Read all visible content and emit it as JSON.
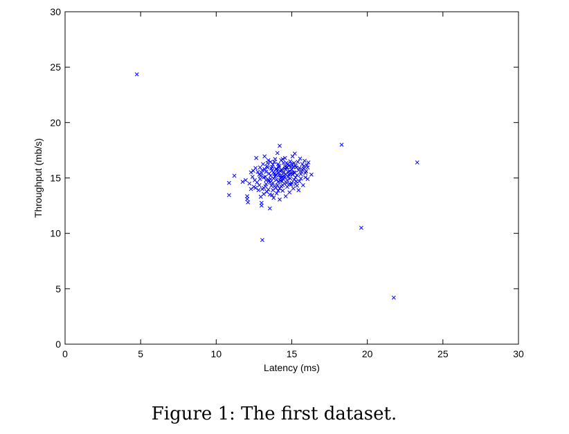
{
  "caption": "Figure 1: The first dataset.",
  "chart_data": {
    "type": "scatter",
    "title": "",
    "xlabel": "Latency (ms)",
    "ylabel": "Throughput (mb/s)",
    "xlim": [
      0,
      30
    ],
    "ylim": [
      0,
      30
    ],
    "xticks": [
      0,
      5,
      10,
      15,
      20,
      25,
      30
    ],
    "yticks": [
      0,
      5,
      10,
      15,
      20,
      25,
      30
    ],
    "marker": "x",
    "color": "#0000ff",
    "grid": false,
    "points": [
      [
        4.75,
        24.35
      ],
      [
        18.3,
        18.0
      ],
      [
        19.6,
        10.5
      ],
      [
        21.75,
        4.2
      ],
      [
        23.3,
        16.4
      ],
      [
        13.05,
        9.4
      ],
      [
        10.85,
        14.55
      ],
      [
        10.85,
        13.45
      ],
      [
        11.2,
        15.2
      ],
      [
        11.75,
        14.65
      ],
      [
        11.95,
        14.8
      ],
      [
        12.05,
        13.35
      ],
      [
        12.05,
        13.1
      ],
      [
        12.1,
        12.8
      ],
      [
        12.2,
        14.5
      ],
      [
        12.3,
        15.5
      ],
      [
        12.4,
        15.1
      ],
      [
        12.5,
        14.2
      ],
      [
        12.6,
        15.9
      ],
      [
        12.65,
        16.8
      ],
      [
        12.7,
        14.6
      ],
      [
        12.8,
        13.9
      ],
      [
        12.85,
        15.3
      ],
      [
        12.9,
        14.9
      ],
      [
        12.95,
        13.3
      ],
      [
        13.0,
        12.75
      ],
      [
        13.0,
        12.5
      ],
      [
        13.05,
        15.7
      ],
      [
        13.1,
        16.25
      ],
      [
        13.15,
        14.1
      ],
      [
        13.2,
        16.95
      ],
      [
        13.25,
        15.1
      ],
      [
        13.3,
        14.45
      ],
      [
        13.35,
        13.75
      ],
      [
        13.4,
        15.95
      ],
      [
        13.45,
        14.85
      ],
      [
        13.5,
        15.4
      ],
      [
        13.55,
        13.5
      ],
      [
        13.55,
        12.25
      ],
      [
        13.6,
        16.45
      ],
      [
        13.65,
        14.3
      ],
      [
        13.7,
        15.65
      ],
      [
        13.75,
        16.2
      ],
      [
        13.8,
        14.95
      ],
      [
        13.8,
        13.2
      ],
      [
        13.85,
        15.35
      ],
      [
        13.9,
        16.7
      ],
      [
        13.95,
        14.1
      ],
      [
        14.0,
        15.8
      ],
      [
        14.0,
        13.6
      ],
      [
        14.05,
        17.25
      ],
      [
        14.1,
        14.65
      ],
      [
        14.1,
        15.45
      ],
      [
        14.15,
        16.1
      ],
      [
        14.2,
        17.9
      ],
      [
        14.2,
        13.05
      ],
      [
        14.25,
        15.0
      ],
      [
        14.3,
        16.6
      ],
      [
        14.3,
        14.25
      ],
      [
        14.35,
        15.7
      ],
      [
        14.4,
        13.85
      ],
      [
        14.45,
        16.35
      ],
      [
        14.5,
        15.2
      ],
      [
        14.5,
        14.5
      ],
      [
        14.55,
        16.8
      ],
      [
        14.6,
        13.35
      ],
      [
        14.65,
        15.95
      ],
      [
        14.7,
        14.8
      ],
      [
        14.75,
        16.25
      ],
      [
        14.8,
        15.3
      ],
      [
        14.85,
        13.7
      ],
      [
        14.9,
        16.5
      ],
      [
        14.95,
        14.4
      ],
      [
        15.0,
        15.75
      ],
      [
        15.05,
        16.95
      ],
      [
        15.1,
        14.05
      ],
      [
        15.15,
        15.5
      ],
      [
        15.2,
        17.2
      ],
      [
        15.25,
        16.1
      ],
      [
        15.3,
        14.7
      ],
      [
        15.35,
        15.25
      ],
      [
        15.4,
        16.45
      ],
      [
        15.45,
        13.9
      ],
      [
        15.5,
        15.9
      ],
      [
        15.55,
        16.75
      ],
      [
        15.6,
        14.95
      ],
      [
        15.65,
        15.55
      ],
      [
        15.7,
        16.25
      ],
      [
        15.75,
        14.35
      ],
      [
        15.8,
        15.85
      ],
      [
        15.85,
        16.55
      ],
      [
        15.9,
        15.05
      ],
      [
        15.95,
        15.6
      ],
      [
        16.0,
        16.15
      ],
      [
        16.05,
        14.9
      ],
      [
        16.1,
        16.4
      ],
      [
        16.3,
        15.3
      ],
      [
        12.6,
        14.1
      ],
      [
        12.75,
        15.55
      ],
      [
        13.05,
        14.0
      ],
      [
        13.2,
        15.8
      ],
      [
        13.35,
        16.05
      ],
      [
        13.45,
        13.95
      ],
      [
        13.6,
        15.2
      ],
      [
        13.75,
        14.55
      ],
      [
        13.85,
        16.45
      ],
      [
        13.95,
        15.3
      ],
      [
        14.05,
        14.35
      ],
      [
        14.15,
        15.95
      ],
      [
        14.25,
        15.6
      ],
      [
        14.35,
        14.7
      ],
      [
        14.45,
        15.45
      ],
      [
        14.55,
        15.85
      ],
      [
        14.65,
        14.55
      ],
      [
        14.75,
        15.1
      ],
      [
        14.85,
        15.6
      ],
      [
        14.95,
        16.0
      ],
      [
        15.05,
        15.3
      ],
      [
        15.15,
        16.35
      ],
      [
        15.25,
        15.05
      ],
      [
        15.35,
        14.3
      ],
      [
        15.45,
        15.7
      ],
      [
        13.15,
        15.05
      ],
      [
        13.25,
        14.25
      ],
      [
        13.4,
        16.35
      ],
      [
        13.5,
        14.75
      ],
      [
        13.65,
        15.85
      ],
      [
        13.7,
        13.45
      ],
      [
        13.9,
        15.15
      ],
      [
        14.0,
        14.85
      ],
      [
        14.1,
        16.25
      ],
      [
        14.2,
        14.05
      ],
      [
        14.3,
        15.25
      ],
      [
        14.4,
        16.7
      ],
      [
        14.5,
        15.05
      ],
      [
        14.6,
        15.75
      ],
      [
        14.7,
        14.2
      ],
      [
        14.8,
        16.1
      ],
      [
        14.9,
        14.95
      ],
      [
        15.0,
        14.55
      ],
      [
        15.1,
        16.0
      ],
      [
        15.2,
        15.45
      ],
      [
        12.45,
        15.65
      ],
      [
        12.85,
        14.35
      ],
      [
        13.0,
        15.45
      ],
      [
        13.3,
        15.55
      ],
      [
        13.55,
        14.6
      ],
      [
        13.8,
        15.5
      ],
      [
        14.05,
        15.65
      ],
      [
        14.35,
        15.05
      ],
      [
        14.6,
        15.35
      ],
      [
        14.85,
        14.45
      ],
      [
        15.05,
        15.5
      ],
      [
        15.3,
        15.95
      ],
      [
        15.6,
        15.35
      ],
      [
        15.8,
        16.05
      ],
      [
        12.3,
        14.0
      ],
      [
        12.55,
        14.8
      ],
      [
        12.9,
        15.95
      ],
      [
        13.15,
        13.55
      ],
      [
        13.45,
        16.6
      ],
      [
        13.75,
        13.9
      ],
      [
        14.1,
        13.85
      ],
      [
        14.4,
        14.35
      ],
      [
        14.7,
        15.95
      ],
      [
        15.0,
        16.25
      ],
      [
        15.25,
        14.45
      ],
      [
        15.5,
        14.7
      ],
      [
        15.7,
        15.75
      ],
      [
        15.9,
        15.45
      ],
      [
        16.05,
        15.95
      ],
      [
        13.6,
        14.9
      ],
      [
        14.15,
        15.25
      ],
      [
        14.55,
        16.05
      ],
      [
        13.95,
        15.8
      ],
      [
        14.25,
        14.75
      ],
      [
        14.45,
        14.9
      ],
      [
        14.75,
        15.55
      ],
      [
        13.3,
        14.8
      ],
      [
        13.85,
        14.25
      ],
      [
        14.65,
        16.35
      ],
      [
        15.15,
        14.85
      ],
      [
        12.95,
        15.2
      ],
      [
        13.7,
        16.0
      ],
      [
        14.3,
        15.75
      ],
      [
        14.9,
        15.35
      ]
    ]
  }
}
